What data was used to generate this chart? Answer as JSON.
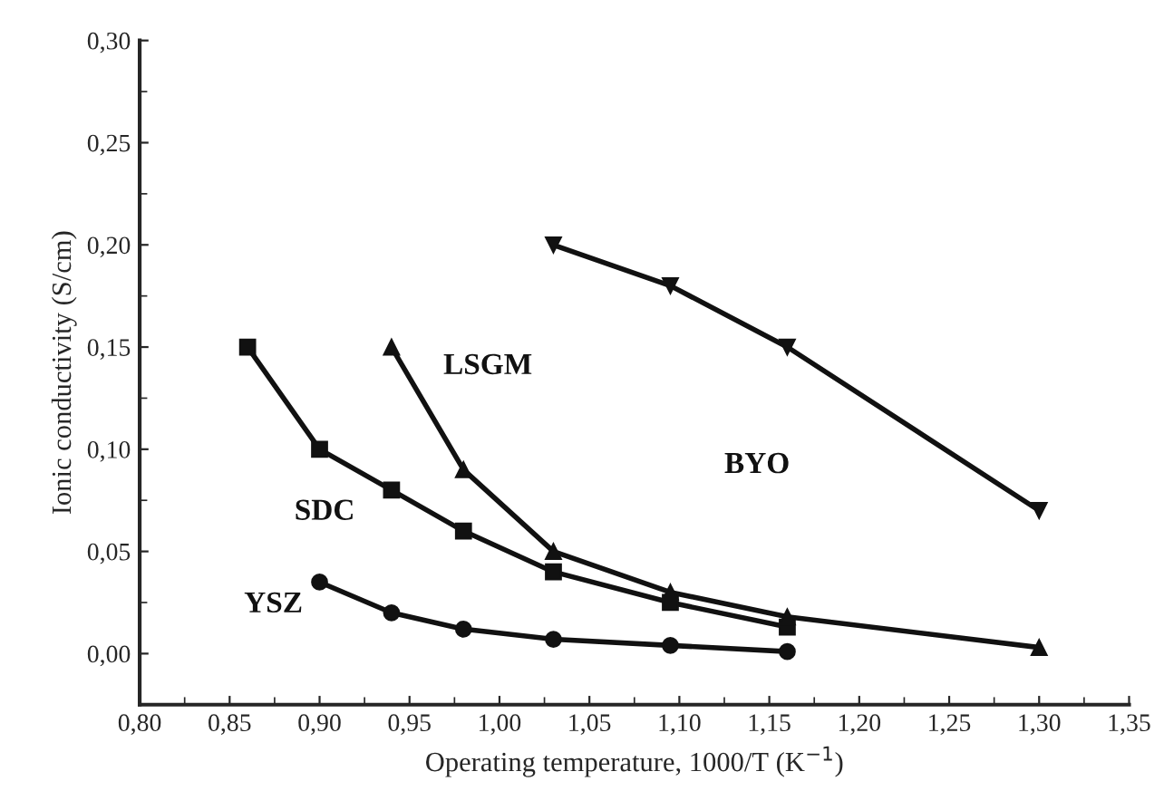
{
  "chart_data": {
    "type": "line",
    "xlabel": "Operating temperature, 1000/T (K$^{−1}$)",
    "ylabel": "Ionic conductivity (S/cm)",
    "xlim": [
      0.8,
      1.35
    ],
    "ylim": [
      -0.025,
      0.3
    ],
    "xticks": [
      {
        "value": 0.8,
        "label": "0,80"
      },
      {
        "value": 0.85,
        "label": "0,85"
      },
      {
        "value": 0.9,
        "label": "0,90"
      },
      {
        "value": 0.95,
        "label": "0,95"
      },
      {
        "value": 1.0,
        "label": "1,00"
      },
      {
        "value": 1.05,
        "label": "1,05"
      },
      {
        "value": 1.1,
        "label": "1,10"
      },
      {
        "value": 1.15,
        "label": "1,15"
      },
      {
        "value": 1.2,
        "label": "1,20"
      },
      {
        "value": 1.25,
        "label": "1,25"
      },
      {
        "value": 1.3,
        "label": "1,30"
      },
      {
        "value": 1.35,
        "label": "1,35"
      }
    ],
    "yticks": [
      {
        "value": 0.0,
        "label": "0,00"
      },
      {
        "value": 0.05,
        "label": "0,05"
      },
      {
        "value": 0.1,
        "label": "0,10"
      },
      {
        "value": 0.15,
        "label": "0,15"
      },
      {
        "value": 0.2,
        "label": "0,20"
      },
      {
        "value": 0.25,
        "label": "0,25"
      },
      {
        "value": 0.3,
        "label": "0,30"
      }
    ],
    "grid": false,
    "legend": false,
    "line_style": "solid",
    "series": [
      {
        "name": "SDC",
        "color": "#111111",
        "marker": "square",
        "x": [
          0.86,
          0.9,
          0.94,
          0.98,
          1.03,
          1.095,
          1.16
        ],
        "values": [
          0.15,
          0.1,
          0.08,
          0.06,
          0.04,
          0.025,
          0.013
        ]
      },
      {
        "name": "LSGM",
        "color": "#111111",
        "marker": "triangle",
        "x": [
          0.94,
          0.98,
          1.03,
          1.095,
          1.16,
          1.3
        ],
        "values": [
          0.15,
          0.09,
          0.05,
          0.03,
          0.018,
          0.003
        ]
      },
      {
        "name": "YSZ",
        "color": "#111111",
        "marker": "circle",
        "x": [
          0.9,
          0.94,
          0.98,
          1.03,
          1.095,
          1.16
        ],
        "values": [
          0.035,
          0.02,
          0.012,
          0.007,
          0.004,
          0.001
        ]
      },
      {
        "name": "BYO",
        "color": "#111111",
        "marker": "triangle_down",
        "x": [
          1.03,
          1.095,
          1.16,
          1.3
        ],
        "values": [
          0.2,
          0.18,
          0.15,
          0.07
        ]
      }
    ]
  }
}
